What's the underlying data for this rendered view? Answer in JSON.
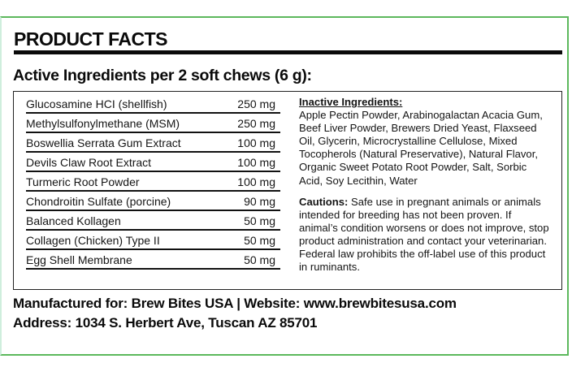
{
  "label": {
    "title": "PRODUCT FACTS",
    "subtitle": "Active Ingredients per 2 soft chews (6 g):",
    "active_ingredients": [
      {
        "name": "Glucosamine HCI (shellfish)",
        "amount": "250 mg"
      },
      {
        "name": "Methylsulfonylmethane (MSM)",
        "amount": "250 mg"
      },
      {
        "name": "Boswellia Serrata Gum Extract",
        "amount": "100 mg"
      },
      {
        "name": "Devils Claw Root Extract",
        "amount": "100 mg"
      },
      {
        "name": "Turmeric Root Powder",
        "amount": "100 mg"
      },
      {
        "name": "Chondroitin Sulfate (porcine)",
        "amount": "90 mg"
      },
      {
        "name": "Balanced Kollagen",
        "amount": "50 mg"
      },
      {
        "name": "Collagen (Chicken) Type II",
        "amount": "50 mg"
      },
      {
        "name": "Egg Shell Membrane",
        "amount": "50 mg"
      }
    ],
    "inactive": {
      "heading": "Inactive Ingredients:",
      "text": "Apple Pectin Powder, Arabinogalactan Acacia Gum, Beef Liver Powder, Brewers Dried Yeast, Flaxseed Oil, Glycerin, Microcrystalline Cellulose, Mixed Tocopherols (Natural Preservative), Natural Flavor, Organic Sweet Potato Root Powder, Salt, Sorbic Acid, Soy Lecithin, Water"
    },
    "cautions": {
      "label": "Cautions:",
      "text": " Safe use in pregnant animals or animals intended for breeding has not been proven. If animal’s condition worsens or does not improve, stop product administration and contact your veterinarian. Federal law prohibits the off-label use of this product in ruminants."
    },
    "footer": {
      "manufacturer_line": "Manufactured for: Brew Bites USA | Website: www.brewbitesusa.com",
      "address_line": "Address: 1034 S. Herbert Ave, Tuscan  AZ 85701"
    }
  },
  "colors": {
    "frame_green": "#5cb85c",
    "frame_left_light_green": "#cfeedd",
    "text": "#111111",
    "rule": "#0a0a0a"
  }
}
